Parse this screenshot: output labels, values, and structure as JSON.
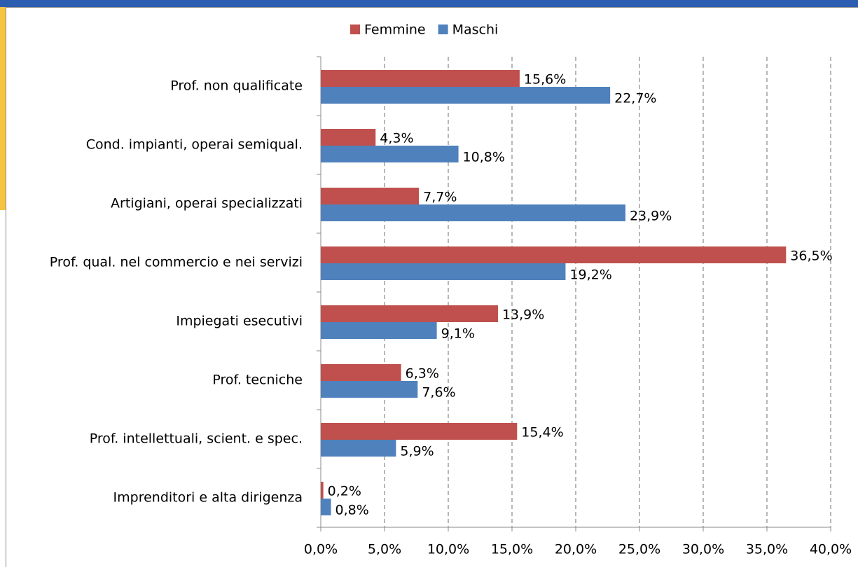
{
  "chart_data": {
    "type": "hbar",
    "categories": [
      "Prof. non qualificate",
      "Cond. impianti, operai semiqual.",
      "Artigiani, operai specializzati",
      "Prof. qual. nel commercio e nei servizi",
      "Impiegati esecutivi",
      "Prof. tecniche",
      "Prof. intellettuali, scient. e spec.",
      "Imprenditori e alta dirigenza"
    ],
    "series": [
      {
        "name": "Femmine",
        "color": "#c0504d",
        "values": [
          15.6,
          4.3,
          7.7,
          36.5,
          13.9,
          6.3,
          15.4,
          0.2
        ],
        "value_labels": [
          "15,6%",
          "4,3%",
          "7,7%",
          "36,5%",
          "13,9%",
          "6,3%",
          "15,4%",
          "0,2%"
        ]
      },
      {
        "name": "Maschi",
        "color": "#4f81bd",
        "values": [
          22.7,
          10.8,
          23.9,
          19.2,
          9.1,
          7.6,
          5.9,
          0.8
        ],
        "value_labels": [
          "22,7%",
          "10,8%",
          "23,9%",
          "19,2%",
          "9,1%",
          "7,6%",
          "5,9%",
          "0,8%"
        ]
      }
    ],
    "xlim": [
      0,
      40
    ],
    "xticks": [
      {
        "value": 0,
        "label": "0,0%"
      },
      {
        "value": 5,
        "label": "5,0%"
      },
      {
        "value": 10,
        "label": "10,0%"
      },
      {
        "value": 15,
        "label": "15,0%"
      },
      {
        "value": 20,
        "label": "20,0%"
      },
      {
        "value": 25,
        "label": "25,0%"
      },
      {
        "value": 30,
        "label": "30,0%"
      },
      {
        "value": 35,
        "label": "35,0%"
      },
      {
        "value": 40,
        "label": "40,0%"
      }
    ],
    "grid": true,
    "legend": "top"
  }
}
